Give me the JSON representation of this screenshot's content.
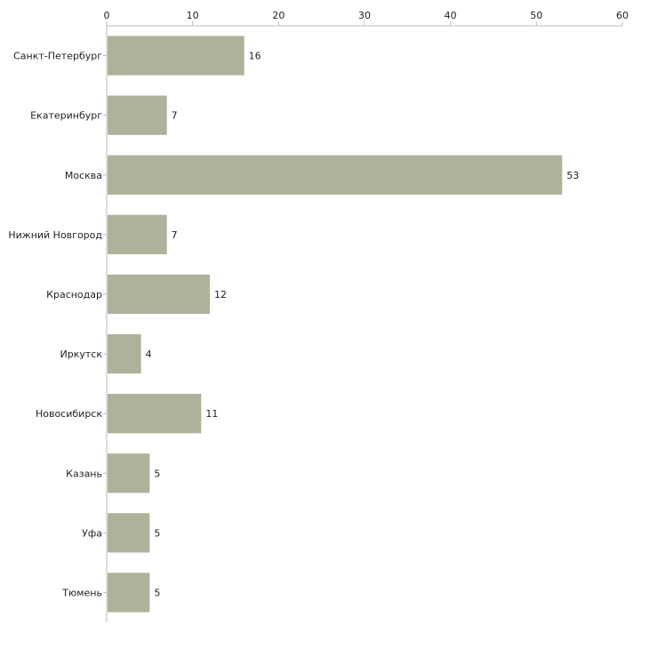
{
  "chart_data": {
    "type": "bar",
    "orientation": "horizontal",
    "categories": [
      "Санкт-Петербург",
      "Екатеринбург",
      "Москва",
      "Нижний Новгород",
      "Краснодар",
      "Иркутск",
      "Новосибирск",
      "Казань",
      "Уфа",
      "Тюмень"
    ],
    "values": [
      16,
      7,
      53,
      7,
      12,
      4,
      11,
      5,
      5,
      5
    ],
    "xlim": [
      0,
      60
    ],
    "x_ticks": [
      0,
      10,
      20,
      30,
      40,
      50,
      60
    ],
    "axis_position": "top",
    "grid": false,
    "data_labels": true,
    "bar_color": "#acb39a"
  }
}
